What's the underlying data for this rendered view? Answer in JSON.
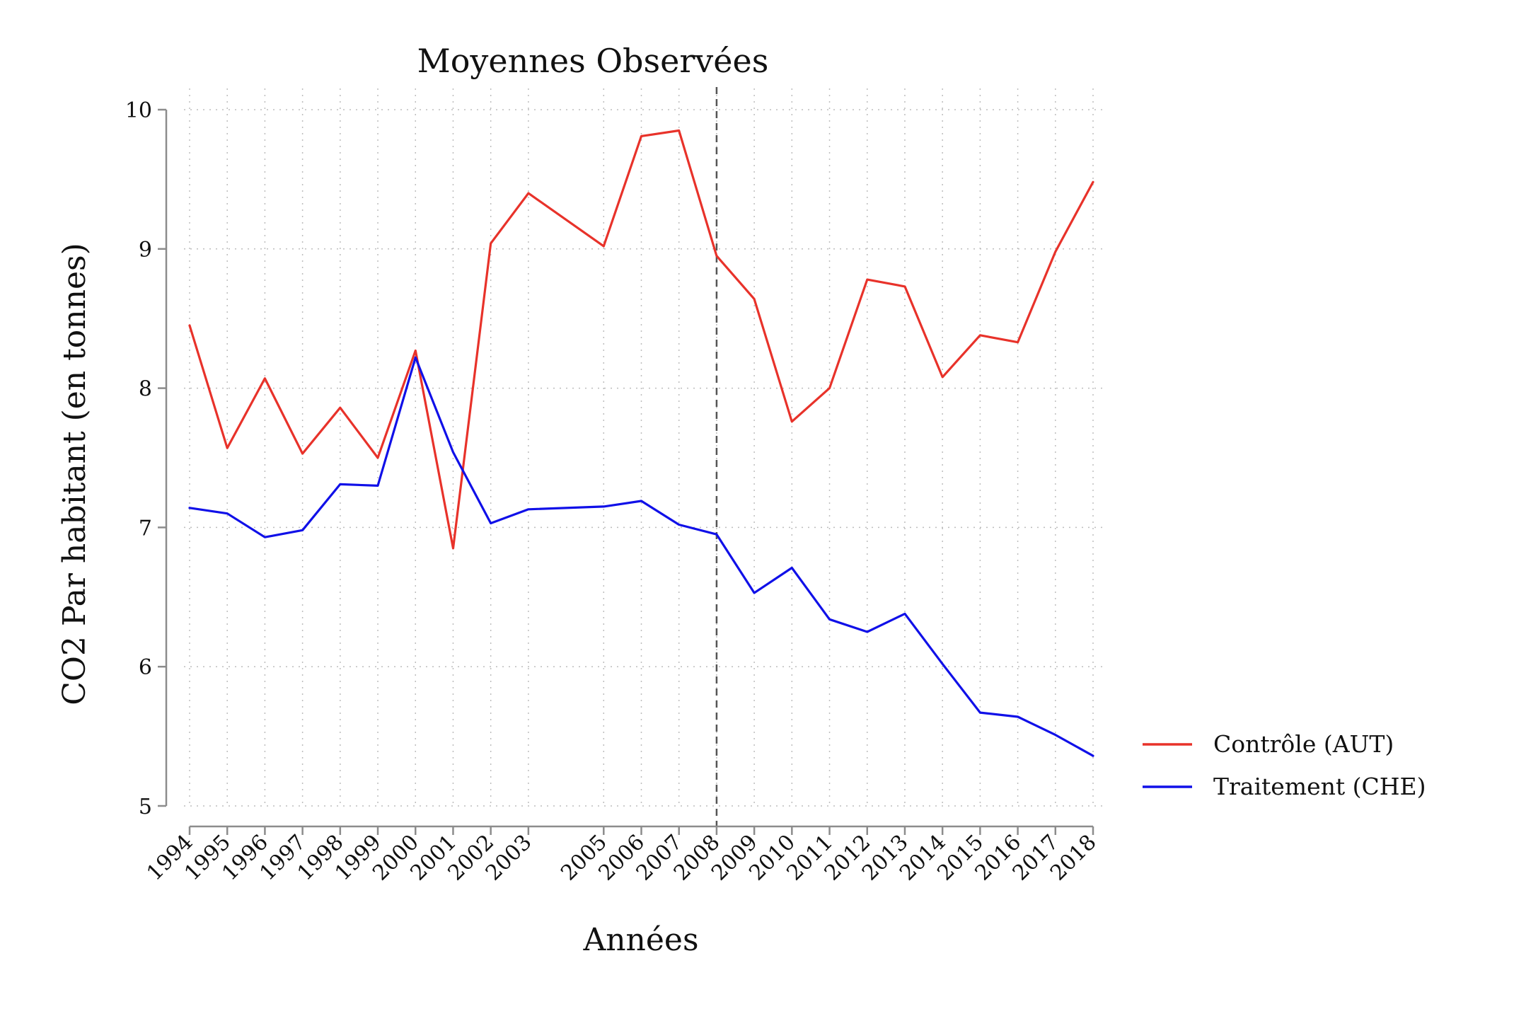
{
  "chart_data": {
    "type": "line",
    "title": "Moyennes Observées",
    "xlabel": "Années",
    "ylabel": "CO2 Par habitant (en tonnes)",
    "ylim": [
      5,
      10
    ],
    "xlim": [
      1994,
      2018
    ],
    "yticks": [
      5,
      6,
      7,
      8,
      9,
      10
    ],
    "xticks": [
      1994,
      1995,
      1996,
      1997,
      1998,
      1999,
      2000,
      2001,
      2002,
      2003,
      2005,
      2006,
      2007,
      2008,
      2009,
      2010,
      2011,
      2012,
      2013,
      2014,
      2015,
      2016,
      2017,
      2018
    ],
    "grid": true,
    "vline": 2008,
    "legend_position": "right",
    "x": [
      1994,
      1995,
      1996,
      1997,
      1998,
      1999,
      2000,
      2001,
      2002,
      2003,
      2005,
      2006,
      2007,
      2008,
      2009,
      2010,
      2011,
      2012,
      2013,
      2014,
      2015,
      2016,
      2017,
      2018
    ],
    "series": [
      {
        "name": "Contrôle (AUT)",
        "color": "#e8322a",
        "values": [
          8.45,
          7.57,
          8.07,
          7.53,
          7.86,
          7.5,
          8.27,
          6.85,
          9.04,
          9.4,
          9.02,
          9.81,
          9.85,
          8.95,
          8.64,
          7.76,
          8.0,
          8.78,
          8.73,
          8.08,
          8.38,
          8.33,
          8.98,
          9.48
        ]
      },
      {
        "name": "Traitement (CHE)",
        "color": "#1010e8",
        "values": [
          7.14,
          7.1,
          6.93,
          6.98,
          7.31,
          7.3,
          8.22,
          7.54,
          7.03,
          7.13,
          7.15,
          7.19,
          7.02,
          6.95,
          6.53,
          6.71,
          6.34,
          6.25,
          6.38,
          6.02,
          5.67,
          5.64,
          5.51,
          5.36
        ]
      }
    ]
  }
}
